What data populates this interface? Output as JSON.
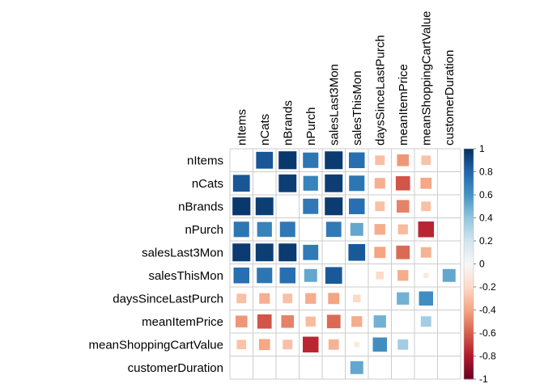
{
  "chart_data": {
    "type": "heatmap",
    "title": "",
    "xlabel": "",
    "ylabel": "",
    "variables": [
      "nItems",
      "nCats",
      "nBrands",
      "nPurch",
      "salesLast3Mon",
      "salesThisMon",
      "daysSinceLastPurch",
      "meanItemPrice",
      "meanShoppingCartValue",
      "customerDuration"
    ],
    "diagonal": "blank",
    "matrix": [
      [
        1.0,
        0.86,
        0.97,
        0.73,
        0.96,
        0.76,
        -0.3,
        -0.44,
        -0.29,
        0.0
      ],
      [
        0.86,
        1.0,
        0.95,
        0.67,
        0.95,
        0.73,
        -0.36,
        -0.63,
        -0.39,
        0.0
      ],
      [
        0.97,
        0.95,
        1.0,
        0.72,
        0.96,
        0.76,
        -0.3,
        -0.5,
        -0.3,
        0.0
      ],
      [
        0.73,
        0.67,
        0.72,
        1.0,
        0.71,
        0.52,
        -0.37,
        -0.32,
        -0.76,
        0.01
      ],
      [
        0.96,
        0.95,
        0.96,
        0.71,
        1.0,
        0.85,
        -0.4,
        -0.57,
        -0.35,
        0.0
      ],
      [
        0.76,
        0.73,
        0.76,
        0.52,
        0.85,
        1.0,
        -0.2,
        -0.37,
        -0.1,
        0.52
      ],
      [
        -0.3,
        -0.36,
        -0.3,
        -0.37,
        -0.4,
        -0.2,
        1.0,
        0.48,
        0.62,
        0.0
      ],
      [
        -0.44,
        -0.63,
        -0.5,
        -0.32,
        -0.57,
        -0.37,
        0.48,
        1.0,
        0.35,
        0.0
      ],
      [
        -0.29,
        -0.39,
        -0.3,
        -0.76,
        -0.35,
        -0.1,
        0.62,
        0.35,
        1.0,
        0.0
      ],
      [
        0.0,
        0.0,
        0.0,
        0.01,
        0.0,
        0.52,
        0.0,
        0.0,
        0.0,
        1.0
      ]
    ],
    "colorbar": {
      "ticks": [
        "1",
        "0.8",
        "0.6",
        "0.4",
        "0.2",
        "0",
        "-0.2",
        "-0.4",
        "-0.6",
        "-0.8",
        "-1"
      ],
      "range": [
        -1,
        1
      ]
    },
    "colors": {
      "negative_end": "#67001F",
      "positive_end": "#053061",
      "mid": "#F7F7F7",
      "grid": "#cccccc"
    },
    "grid": true,
    "legend_position": "right"
  }
}
